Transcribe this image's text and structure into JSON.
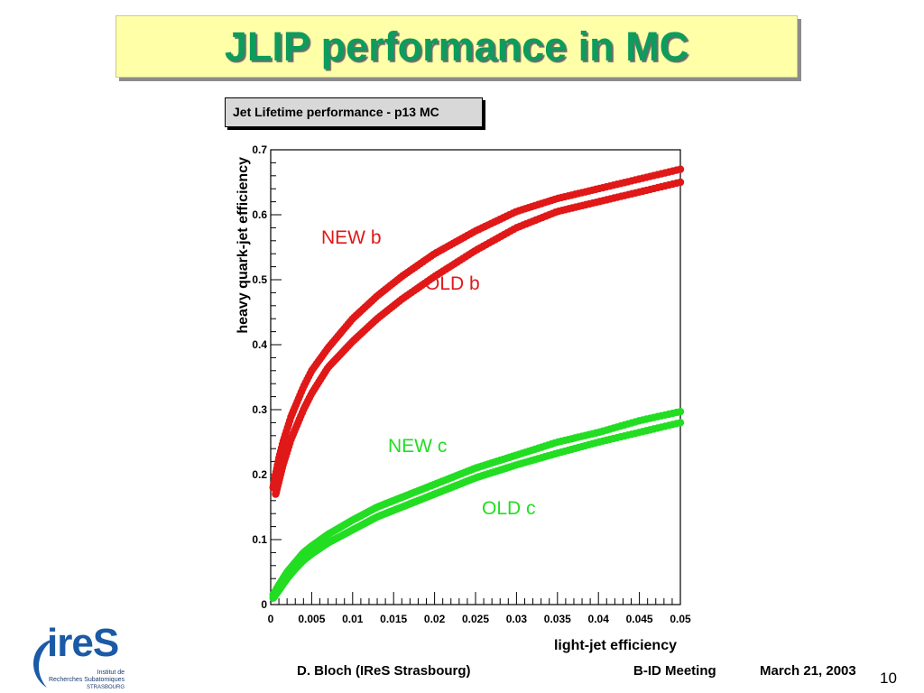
{
  "slide": {
    "title": "JLIP performance in MC",
    "footer_left": "D. Bloch (IReS Strasbourg)",
    "footer_meeting": "B-ID Meeting",
    "footer_date": "March 21, 2003",
    "page_number": "10"
  },
  "logo": {
    "main": "ireS",
    "line1": "Institut de",
    "line2": "Recherches Subatomiques",
    "line3": "STRASBOURG"
  },
  "chart_data": {
    "type": "scatter",
    "title": "Jet Lifetime performance - p13 MC",
    "xlabel": "light-jet efficiency",
    "ylabel": "heavy quark-jet efficiency",
    "xlim": [
      0,
      0.05
    ],
    "ylim": [
      0,
      0.7
    ],
    "x_ticks": [
      "0",
      "0.005",
      "0.01",
      "0.015",
      "0.02",
      "0.025",
      "0.03",
      "0.035",
      "0.04",
      "0.045",
      "0.05"
    ],
    "y_ticks": [
      "0",
      "0.1",
      "0.2",
      "0.3",
      "0.4",
      "0.5",
      "0.6",
      "0.7"
    ],
    "grid": false,
    "colors": {
      "b": "#e01818",
      "c": "#22dd22"
    },
    "series": [
      {
        "name": "NEW b",
        "color": "#e01818",
        "x": [
          0.0003,
          0.0006,
          0.001,
          0.0015,
          0.002,
          0.0025,
          0.003,
          0.004,
          0.005,
          0.007,
          0.01,
          0.013,
          0.016,
          0.02,
          0.025,
          0.03,
          0.035,
          0.04,
          0.045,
          0.05
        ],
        "y": [
          0.18,
          0.2,
          0.225,
          0.25,
          0.27,
          0.29,
          0.305,
          0.335,
          0.36,
          0.395,
          0.44,
          0.475,
          0.505,
          0.54,
          0.575,
          0.605,
          0.625,
          0.64,
          0.655,
          0.67
        ]
      },
      {
        "name": "OLD b",
        "color": "#e01818",
        "x": [
          0.0006,
          0.001,
          0.0015,
          0.002,
          0.0025,
          0.003,
          0.004,
          0.005,
          0.007,
          0.01,
          0.013,
          0.016,
          0.02,
          0.025,
          0.03,
          0.035,
          0.04,
          0.045,
          0.05
        ],
        "y": [
          0.17,
          0.19,
          0.215,
          0.235,
          0.255,
          0.27,
          0.3,
          0.325,
          0.365,
          0.405,
          0.44,
          0.47,
          0.505,
          0.545,
          0.58,
          0.605,
          0.62,
          0.635,
          0.65
        ]
      },
      {
        "name": "NEW c",
        "color": "#22dd22",
        "x": [
          0.0003,
          0.001,
          0.002,
          0.003,
          0.004,
          0.005,
          0.007,
          0.01,
          0.013,
          0.016,
          0.02,
          0.025,
          0.03,
          0.035,
          0.04,
          0.045,
          0.05
        ],
        "y": [
          0.015,
          0.03,
          0.05,
          0.065,
          0.08,
          0.09,
          0.108,
          0.13,
          0.15,
          0.165,
          0.185,
          0.21,
          0.23,
          0.25,
          0.265,
          0.283,
          0.297
        ]
      },
      {
        "name": "OLD c",
        "color": "#22dd22",
        "x": [
          0.0003,
          0.001,
          0.002,
          0.003,
          0.004,
          0.005,
          0.007,
          0.01,
          0.013,
          0.016,
          0.02,
          0.025,
          0.03,
          0.035,
          0.04,
          0.045,
          0.05
        ],
        "y": [
          0.01,
          0.022,
          0.04,
          0.055,
          0.068,
          0.078,
          0.095,
          0.115,
          0.135,
          0.15,
          0.17,
          0.195,
          0.215,
          0.233,
          0.25,
          0.265,
          0.28
        ]
      }
    ],
    "annotations": [
      {
        "text": "NEW b",
        "series": "NEW b"
      },
      {
        "text": "OLD b",
        "series": "OLD b"
      },
      {
        "text": "NEW c",
        "series": "NEW c"
      },
      {
        "text": "OLD c",
        "series": "OLD c"
      }
    ]
  }
}
